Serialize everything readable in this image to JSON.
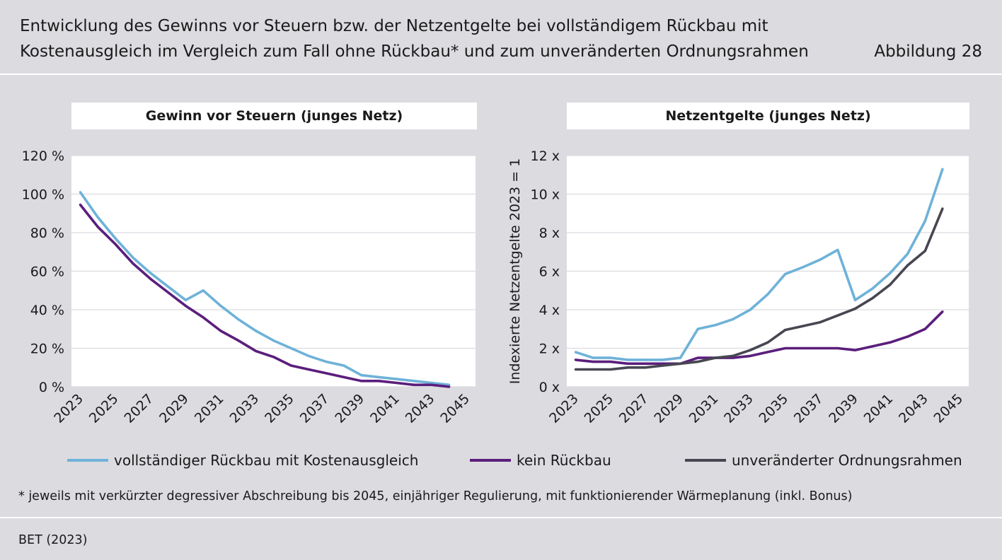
{
  "header": {
    "title_line1": "Entwicklung des Gewinns vor Steuern bzw. der Netzentgelte bei vollständigem Rückbau mit",
    "title_line2": "Kostenausgleich im Vergleich zum Fall ohne Rückbau* und zum unveränderten Ordnungsrahmen",
    "figure_label": "Abbildung 28"
  },
  "legend": [
    {
      "label": "vollständiger Rückbau mit Kostenausgleich",
      "color": "#6eb2d8"
    },
    {
      "label": "kein Rückbau",
      "color": "#5b1e7c"
    },
    {
      "label": "unveränderter Ordnungsrahmen",
      "color": "#474752"
    }
  ],
  "footnote": "* jeweils mit verkürzter degressiver Abschreibung bis 2045, einjähriger Regulierung, mit funktionierender Wärmeplanung (inkl. Bonus)",
  "source": "BET (2023)",
  "chart_data": [
    {
      "type": "line",
      "title": "Gewinn vor Steuern (junges Netz)",
      "ylabel": "",
      "ylim": [
        0,
        120
      ],
      "yticks": [
        "0 %",
        "20 %",
        "40 %",
        "60 %",
        "80 %",
        "100 %",
        "120 %"
      ],
      "xlim": [
        2022.5,
        2045.5
      ],
      "xticks": [
        "2023",
        "2025",
        "2027",
        "2029",
        "2031",
        "2033",
        "2035",
        "2037",
        "2039",
        "2041",
        "2043",
        "2045"
      ],
      "x": [
        2023,
        2024,
        2025,
        2026,
        2027,
        2028,
        2029,
        2030,
        2031,
        2032,
        2033,
        2034,
        2035,
        2036,
        2037,
        2038,
        2039,
        2040,
        2041,
        2042,
        2043,
        2044
      ],
      "series": [
        {
          "name": "vollständiger Rückbau mit Kostenausgleich",
          "color": "#6eb2d8",
          "values": [
            101,
            88,
            77,
            67,
            59,
            52,
            45,
            50,
            42,
            35,
            29,
            24,
            20,
            16,
            13,
            11,
            6,
            5,
            4,
            3,
            2,
            1
          ]
        },
        {
          "name": "kein Rückbau",
          "color": "#5b1e7c",
          "values": [
            94.5,
            83,
            74,
            64,
            56,
            49,
            42,
            36,
            29,
            24,
            18.5,
            15.5,
            11,
            9,
            7,
            5,
            3,
            3,
            2,
            1,
            1,
            0
          ]
        }
      ]
    },
    {
      "type": "line",
      "title": "Netzentgelte (junges Netz)",
      "ylabel": "Indexierte Netzentgelte 2023 = 1",
      "ylim": [
        0,
        12
      ],
      "yticks": [
        "0 x",
        "2 x",
        "4 x",
        "6 x",
        "8 x",
        "10 x",
        "12 x"
      ],
      "xlim": [
        2022.5,
        2045.5
      ],
      "xticks": [
        "2023",
        "2025",
        "2027",
        "2029",
        "2031",
        "2033",
        "2035",
        "2037",
        "2039",
        "2041",
        "2043",
        "2045"
      ],
      "x": [
        2023,
        2024,
        2025,
        2026,
        2027,
        2028,
        2029,
        2030,
        2031,
        2032,
        2033,
        2034,
        2035,
        2036,
        2037,
        2038,
        2039,
        2040,
        2041,
        2042,
        2043,
        2044
      ],
      "series": [
        {
          "name": "vollständiger Rückbau mit Kostenausgleich",
          "color": "#6eb2d8",
          "values": [
            1.8,
            1.5,
            1.5,
            1.4,
            1.4,
            1.4,
            1.5,
            3.0,
            3.2,
            3.5,
            4.0,
            4.8,
            5.85,
            6.2,
            6.6,
            7.1,
            4.5,
            5.1,
            5.9,
            6.9,
            8.6,
            11.3
          ]
        },
        {
          "name": "kein Rückbau",
          "color": "#5b1e7c",
          "values": [
            1.4,
            1.3,
            1.3,
            1.2,
            1.2,
            1.2,
            1.2,
            1.5,
            1.5,
            1.5,
            1.6,
            1.8,
            2.0,
            2.0,
            2.0,
            2.0,
            1.9,
            2.1,
            2.3,
            2.6,
            3.0,
            3.9
          ]
        },
        {
          "name": "unveränderter Ordnungsrahmen",
          "color": "#474752",
          "values": [
            0.9,
            0.9,
            0.9,
            1.0,
            1.0,
            1.1,
            1.2,
            1.3,
            1.5,
            1.6,
            1.9,
            2.3,
            2.95,
            3.15,
            3.35,
            3.7,
            4.05,
            4.6,
            5.3,
            6.3,
            7.05,
            9.25
          ]
        }
      ]
    }
  ]
}
